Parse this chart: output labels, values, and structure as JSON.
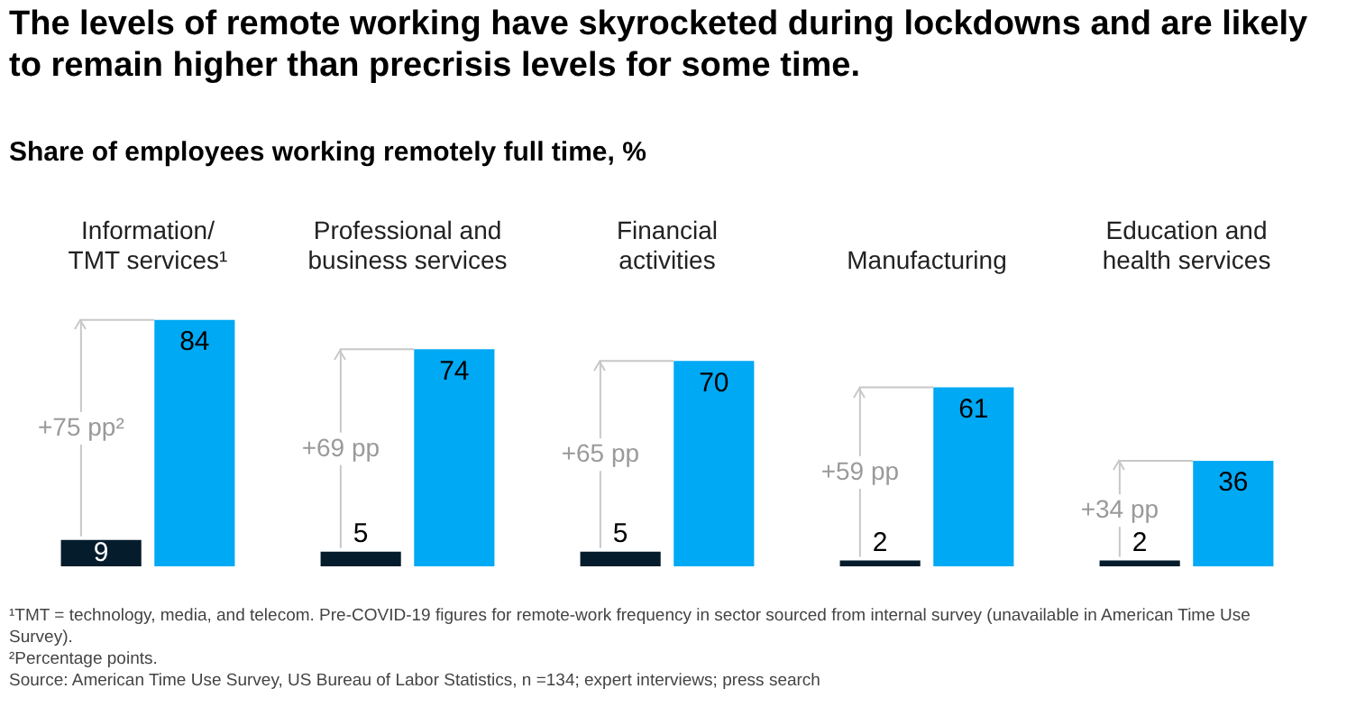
{
  "chart_data": {
    "type": "bar",
    "title": "The levels of remote working have skyrocketed during lockdowns and are likely to remain higher than precrisis levels for some time.",
    "subtitle": "Share of employees working remotely full time, %",
    "categories": [
      "Information/\nTMT services¹",
      "Professional and\nbusiness services",
      "Financial\nactivities",
      "Manufacturing",
      "Education and\nhealth services"
    ],
    "series": [
      {
        "color": "#051c2c",
        "values": [
          9,
          5,
          5,
          2,
          2
        ]
      },
      {
        "color": "#00a9f4",
        "values": [
          84,
          74,
          70,
          61,
          36
        ]
      }
    ],
    "data_labels": true,
    "grid": false,
    "legend": false,
    "annotations": [
      {
        "text": "+75 pp²",
        "x": "Information/\nTMT services¹",
        "y": 47
      },
      {
        "text": "+69 pp",
        "x": "Professional and\nbusiness services",
        "y": 40
      },
      {
        "text": "+65 pp",
        "x": "Financial\nactivities",
        "y": 38
      },
      {
        "text": "+59 pp",
        "x": "Manufacturing",
        "y": 32
      },
      {
        "text": "+34 pp",
        "x": "Education and\nhealth services",
        "y": 19
      },
      "¹TMT = technology, media, and telecom. Pre-COVID-19 figures for remote-work frequency in sector sourced from internal survey (unavailable in American Time Use Survey).",
      "²Percentage points.",
      "Source: American Time Use Survey, US Bureau of Labor Statistics, n =134; expert interviews; press search"
    ]
  }
}
